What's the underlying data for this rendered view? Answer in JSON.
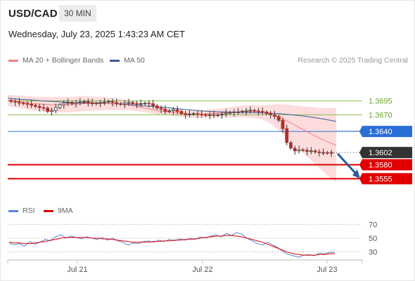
{
  "header": {
    "symbol": "USD/CAD",
    "timeframe": "30 MIN",
    "datetime": "Wednesday, July 23, 2025 1:43:23 AM CET"
  },
  "legend": {
    "ma20_label": "MA 20 + Bollinger Bands",
    "ma50_label": "MA 50",
    "copyright": "Research © 2025 Trading Central"
  },
  "rsi_legend": {
    "rsi_label": "RSI",
    "ma_label": "9MA"
  },
  "colors": {
    "ma20": "#f08080",
    "bollinger": "#fbd0d0",
    "ma50": "#3a5a9a",
    "pivot_green": "#8cbf4e",
    "pivot_blue": "#2a6fd6",
    "support_red": "#e00000",
    "current_price": "#333333",
    "arrow": "#2a5aa0",
    "rsi": "#5b84d6",
    "rsi_ma": "#e00000",
    "candle": "#b0302a"
  },
  "chart_data": [
    {
      "type": "line",
      "title": "",
      "x_ticks": [
        "Jul 21",
        "Jul 22",
        "Jul 23"
      ],
      "ylim": [
        1.352,
        1.374
      ],
      "price_series": {
        "name": "USD/CAD",
        "values": [
          1.3694,
          1.3693,
          1.3691,
          1.369,
          1.3689,
          1.3687,
          1.3685,
          1.3683,
          1.3682,
          1.3676,
          1.3678,
          1.3683,
          1.3688,
          1.3691,
          1.3692,
          1.369,
          1.3692,
          1.3693,
          1.3694,
          1.3692,
          1.369,
          1.3691,
          1.3692,
          1.3693,
          1.3694,
          1.3692,
          1.369,
          1.3689,
          1.3691,
          1.3692,
          1.369,
          1.3689,
          1.369,
          1.3691,
          1.369,
          1.3686,
          1.3682,
          1.368,
          1.3676,
          1.3677,
          1.3679,
          1.3676,
          1.3672,
          1.367,
          1.3671,
          1.3672,
          1.3671,
          1.367,
          1.3669,
          1.367,
          1.3669,
          1.367,
          1.3671,
          1.3673,
          1.3674,
          1.3675,
          1.3675,
          1.3676,
          1.3677,
          1.3678,
          1.3677,
          1.3676,
          1.3675,
          1.3672,
          1.367,
          1.3667,
          1.366,
          1.3645,
          1.362,
          1.361,
          1.3605,
          1.3607,
          1.3606,
          1.3604,
          1.3605,
          1.3603,
          1.3602,
          1.3602,
          1.3601,
          1.3602
        ]
      },
      "ma20_series": {
        "name": "MA 20",
        "values": [
          1.3696,
          1.3694,
          1.3692,
          1.369,
          1.3689,
          1.3688,
          1.3688,
          1.3688,
          1.3689,
          1.369,
          1.369,
          1.369,
          1.369,
          1.3689,
          1.3688,
          1.3686,
          1.3683,
          1.368,
          1.3677,
          1.3675,
          1.3674,
          1.3672,
          1.3671,
          1.3671,
          1.3672,
          1.3673,
          1.3674,
          1.3675,
          1.3676,
          1.3676,
          1.3675,
          1.3672,
          1.3667,
          1.366,
          1.3652,
          1.3644,
          1.3636,
          1.3628,
          1.3621,
          1.3615
        ]
      },
      "ma50_series": {
        "name": "MA 50",
        "values": [
          1.37,
          1.3698,
          1.3697,
          1.3695,
          1.3694,
          1.3693,
          1.3692,
          1.3691,
          1.3691,
          1.369,
          1.3689,
          1.3688,
          1.3686,
          1.3685,
          1.3683,
          1.3681,
          1.3679,
          1.3677,
          1.3676,
          1.3675,
          1.3675,
          1.3674,
          1.3674,
          1.3673,
          1.3672,
          1.367,
          1.3668,
          1.3665,
          1.3662,
          1.3658
        ]
      },
      "levels": [
        {
          "label": "1.3695",
          "value": 1.3695,
          "style": "green"
        },
        {
          "label": "1.3670",
          "value": 1.367,
          "style": "green"
        },
        {
          "label": "1.3640",
          "value": 1.364,
          "style": "blue"
        },
        {
          "label": "1.3602",
          "value": 1.3602,
          "style": "current"
        },
        {
          "label": "1.3580",
          "value": 1.358,
          "style": "red"
        },
        {
          "label": "1.3555",
          "value": 1.3555,
          "style": "red"
        }
      ],
      "forecast_arrow": {
        "from": 1.36,
        "to": 1.3555
      }
    },
    {
      "type": "line",
      "title": "",
      "ylim": [
        20,
        80
      ],
      "y_ticks": [
        "70",
        "50",
        "30"
      ],
      "series": [
        {
          "name": "RSI",
          "values": [
            43,
            40,
            42,
            38,
            45,
            41,
            44,
            48,
            46,
            52,
            55,
            50,
            53,
            51,
            49,
            52,
            50,
            48,
            51,
            47,
            50,
            46,
            44,
            40,
            43,
            42,
            45,
            46,
            44,
            47,
            45,
            48,
            46,
            49,
            47,
            50,
            48,
            52,
            50,
            53,
            55,
            52,
            57,
            54,
            58,
            56,
            50,
            46,
            42,
            40,
            44,
            40,
            36,
            30,
            26,
            24,
            22,
            25,
            26,
            24,
            28,
            27,
            29,
            29
          ]
        },
        {
          "name": "9MA",
          "values": [
            44,
            43,
            43,
            42,
            42,
            43,
            44,
            45,
            47,
            48,
            50,
            51,
            51,
            51,
            51,
            51,
            50,
            50,
            49,
            49,
            48,
            47,
            46,
            45,
            44,
            44,
            44,
            44,
            45,
            45,
            46,
            46,
            47,
            47,
            48,
            48,
            49,
            50,
            51,
            52,
            53,
            53,
            54,
            54,
            53,
            52,
            50,
            48,
            46,
            44,
            41,
            38,
            35,
            32,
            29,
            27,
            26,
            25,
            25,
            25,
            26,
            26,
            27,
            27
          ]
        }
      ]
    }
  ]
}
